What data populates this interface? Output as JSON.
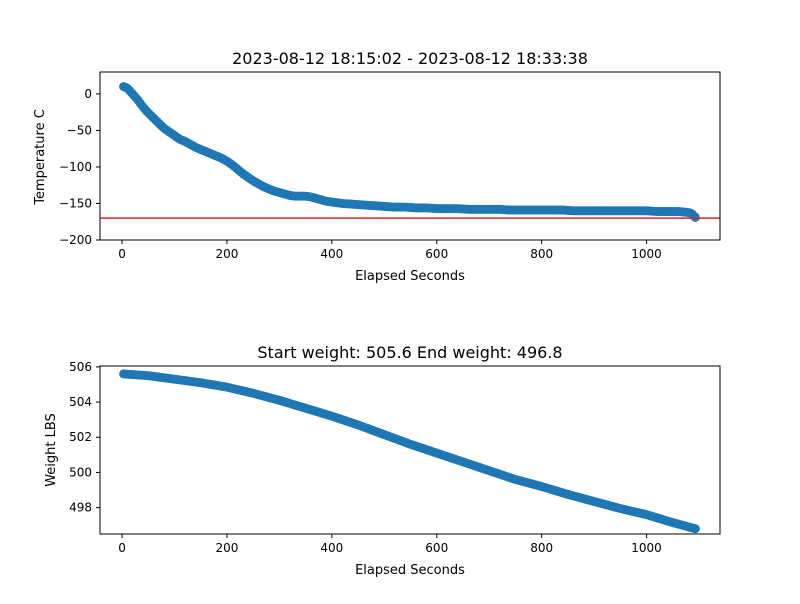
{
  "colors": {
    "series": "#1f77b4",
    "hline": "#d62728",
    "axis": "#000000"
  },
  "chart_data": [
    {
      "type": "scatter",
      "title": "2023-08-12 18:15:02 - 2023-08-12 18:33:38",
      "xlabel": "Elapsed Seconds",
      "ylabel": "Temperature C",
      "xlim": [
        -42,
        1140
      ],
      "ylim": [
        -200,
        30
      ],
      "xticks": [
        0,
        200,
        400,
        600,
        800,
        1000
      ],
      "yticks": [
        0,
        -50,
        -100,
        -150,
        -200
      ],
      "xtick_labels": [
        "0",
        "200",
        "400",
        "600",
        "800",
        "1000"
      ],
      "ytick_labels": [
        "0",
        "−50",
        "−100",
        "−150",
        "−200"
      ],
      "grid": false,
      "hline": -170,
      "x_range": [
        3,
        1093
      ],
      "points": [
        [
          3,
          10
        ],
        [
          10,
          8
        ],
        [
          20,
          0
        ],
        [
          30,
          -8
        ],
        [
          40,
          -18
        ],
        [
          50,
          -26
        ],
        [
          60,
          -33
        ],
        [
          70,
          -40
        ],
        [
          80,
          -47
        ],
        [
          90,
          -52
        ],
        [
          100,
          -57
        ],
        [
          110,
          -62
        ],
        [
          120,
          -65
        ],
        [
          130,
          -69
        ],
        [
          140,
          -73
        ],
        [
          150,
          -76
        ],
        [
          160,
          -79
        ],
        [
          170,
          -82
        ],
        [
          180,
          -85
        ],
        [
          190,
          -88
        ],
        [
          200,
          -92
        ],
        [
          210,
          -97
        ],
        [
          220,
          -103
        ],
        [
          230,
          -109
        ],
        [
          240,
          -114
        ],
        [
          250,
          -119
        ],
        [
          260,
          -123
        ],
        [
          270,
          -127
        ],
        [
          280,
          -130
        ],
        [
          290,
          -133
        ],
        [
          300,
          -135
        ],
        [
          310,
          -137
        ],
        [
          320,
          -139
        ],
        [
          330,
          -140
        ],
        [
          340,
          -140
        ],
        [
          350,
          -140
        ],
        [
          360,
          -141
        ],
        [
          370,
          -143
        ],
        [
          380,
          -145
        ],
        [
          390,
          -147
        ],
        [
          400,
          -148
        ],
        [
          420,
          -150
        ],
        [
          440,
          -151
        ],
        [
          460,
          -152
        ],
        [
          480,
          -153
        ],
        [
          500,
          -154
        ],
        [
          520,
          -155
        ],
        [
          540,
          -155
        ],
        [
          560,
          -156
        ],
        [
          580,
          -156
        ],
        [
          600,
          -157
        ],
        [
          620,
          -157
        ],
        [
          640,
          -157
        ],
        [
          660,
          -158
        ],
        [
          680,
          -158
        ],
        [
          700,
          -158
        ],
        [
          720,
          -158
        ],
        [
          740,
          -159
        ],
        [
          760,
          -159
        ],
        [
          780,
          -159
        ],
        [
          800,
          -159
        ],
        [
          820,
          -159
        ],
        [
          840,
          -159
        ],
        [
          860,
          -160
        ],
        [
          880,
          -160
        ],
        [
          900,
          -160
        ],
        [
          920,
          -160
        ],
        [
          940,
          -160
        ],
        [
          960,
          -160
        ],
        [
          980,
          -160
        ],
        [
          1000,
          -160
        ],
        [
          1020,
          -161
        ],
        [
          1040,
          -161
        ],
        [
          1060,
          -161
        ],
        [
          1075,
          -162
        ],
        [
          1085,
          -163
        ],
        [
          1093,
          -169
        ]
      ]
    },
    {
      "type": "scatter",
      "title": "Start weight: 505.6 End weight: 496.8",
      "xlabel": "Elapsed Seconds",
      "ylabel": "Weight LBS",
      "xlim": [
        -42,
        1140
      ],
      "ylim": [
        496.5,
        506.05
      ],
      "xticks": [
        0,
        200,
        400,
        600,
        800,
        1000
      ],
      "yticks": [
        498,
        500,
        502,
        504,
        506
      ],
      "xtick_labels": [
        "0",
        "200",
        "400",
        "600",
        "800",
        "1000"
      ],
      "ytick_labels": [
        "498",
        "500",
        "502",
        "504",
        "506"
      ],
      "grid": false,
      "x_range": [
        3,
        1093
      ],
      "points": [
        [
          3,
          505.6
        ],
        [
          50,
          505.5
        ],
        [
          100,
          505.3
        ],
        [
          150,
          505.1
        ],
        [
          200,
          504.85
        ],
        [
          250,
          504.5
        ],
        [
          300,
          504.1
        ],
        [
          350,
          503.65
        ],
        [
          400,
          503.2
        ],
        [
          450,
          502.7
        ],
        [
          500,
          502.15
        ],
        [
          550,
          501.6
        ],
        [
          600,
          501.1
        ],
        [
          650,
          500.6
        ],
        [
          700,
          500.1
        ],
        [
          750,
          499.6
        ],
        [
          800,
          499.2
        ],
        [
          850,
          498.75
        ],
        [
          900,
          498.35
        ],
        [
          950,
          497.95
        ],
        [
          1000,
          497.6
        ],
        [
          1050,
          497.15
        ],
        [
          1093,
          496.8
        ]
      ]
    }
  ]
}
